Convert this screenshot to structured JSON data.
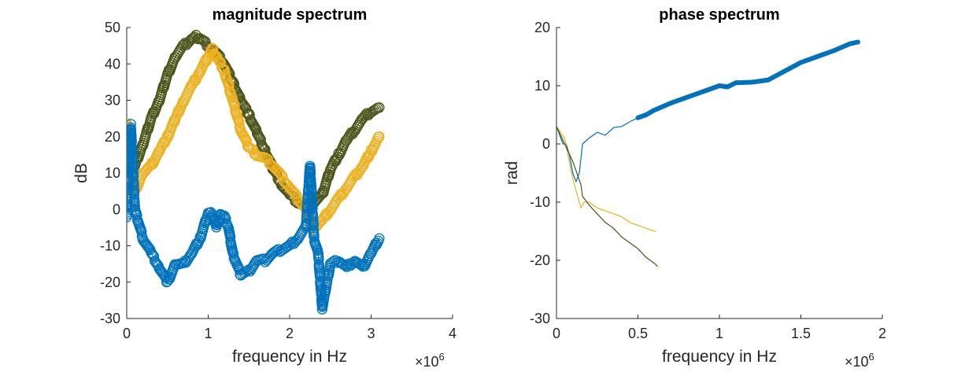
{
  "colors": {
    "blue": "#0072bd",
    "yellow": "#edb120",
    "olive": "#4d5419",
    "axis": "#262626"
  },
  "chart_data": [
    {
      "type": "scatter",
      "title": "magnitude spectrum",
      "xlabel": "frequency in Hz",
      "ylabel": "dB",
      "xlim": [
        0,
        4000000
      ],
      "ylim": [
        -30,
        50
      ],
      "x_exponent_label": "×10",
      "x_exponent_power": "6",
      "xticks": [
        0,
        1000000,
        2000000,
        3000000,
        4000000
      ],
      "xtick_labels": [
        "0",
        "1",
        "2",
        "3",
        "4"
      ],
      "yticks": [
        -30,
        -20,
        -10,
        0,
        10,
        20,
        30,
        40,
        50
      ],
      "ytick_labels": [
        "-30",
        "-20",
        "-10",
        "0",
        "10",
        "20",
        "30",
        "40",
        "50"
      ],
      "marker": "circle",
      "series": [
        {
          "color": "olive",
          "x": [
            0,
            100000,
            200000,
            300000,
            400000,
            500000,
            600000,
            700000,
            800000,
            850000,
            900000,
            1000000,
            1100000,
            1200000,
            1300000,
            1400000,
            1500000,
            1600000,
            1700000,
            1800000,
            1900000,
            2000000,
            2100000,
            2200000,
            2300000,
            2400000,
            2500000,
            2600000,
            2700000,
            2800000,
            2900000,
            3000000,
            3100000
          ],
          "values": [
            10,
            12,
            18,
            25,
            30,
            37,
            42,
            45,
            47,
            47.5,
            47,
            45,
            43,
            40,
            35,
            30,
            26,
            21,
            16,
            11,
            7,
            4,
            2,
            1,
            2,
            4,
            11,
            15,
            19,
            22,
            25,
            27,
            28
          ]
        },
        {
          "color": "yellow",
          "x": [
            0,
            100000,
            200000,
            300000,
            400000,
            500000,
            600000,
            700000,
            800000,
            900000,
            950000,
            1000000,
            1050000,
            1100000,
            1200000,
            1300000,
            1400000,
            1500000,
            1600000,
            1700000,
            1800000,
            1900000,
            2000000,
            2100000,
            2200000,
            2300000,
            2400000,
            2500000,
            2600000,
            2700000,
            2800000,
            2900000,
            3000000,
            3100000
          ],
          "values": [
            24,
            5,
            10,
            12,
            16,
            20,
            25,
            30,
            34,
            38,
            40,
            42,
            44,
            42,
            38,
            30,
            22,
            17,
            15,
            14,
            12,
            9,
            6,
            3,
            0,
            -5,
            -3,
            0,
            3,
            6,
            9,
            12,
            16,
            20
          ]
        },
        {
          "color": "blue",
          "x": [
            0,
            50000,
            100000,
            200000,
            300000,
            400000,
            500000,
            600000,
            700000,
            800000,
            900000,
            1000000,
            1050000,
            1100000,
            1150000,
            1200000,
            1250000,
            1300000,
            1400000,
            1500000,
            1600000,
            1700000,
            1800000,
            1900000,
            2000000,
            2100000,
            2200000,
            2250000,
            2300000,
            2350000,
            2400000,
            2500000,
            2600000,
            2700000,
            2800000,
            2900000,
            3000000,
            3100000
          ],
          "values": [
            -2,
            23,
            0,
            -8,
            -12,
            -16,
            -20,
            -15,
            -15,
            -12,
            -8,
            -1,
            -1,
            -5,
            -1,
            -2,
            -5,
            -12,
            -18,
            -17,
            -14,
            -14,
            -12,
            -11,
            -10,
            -8,
            -5,
            12,
            -8,
            -12,
            -27,
            -15,
            -14,
            -16,
            -14,
            -16,
            -12,
            -8
          ]
        }
      ]
    },
    {
      "type": "line",
      "title": "phase spectrum",
      "xlabel": "frequency in Hz",
      "ylabel": "rad",
      "xlim": [
        0,
        2000000
      ],
      "ylim": [
        -30,
        20
      ],
      "x_exponent_label": "×10",
      "x_exponent_power": "6",
      "xticks": [
        0,
        500000,
        1000000,
        1500000,
        2000000
      ],
      "xtick_labels": [
        "0",
        "0.5",
        "1",
        "1.5",
        "2"
      ],
      "yticks": [
        -30,
        -20,
        -10,
        0,
        10,
        20
      ],
      "ytick_labels": [
        "-30",
        "-20",
        "-10",
        "0",
        "10",
        "20"
      ],
      "series": [
        {
          "color": "blue",
          "x": [
            0,
            40000,
            60000,
            80000,
            100000,
            120000,
            140000,
            160000,
            200000,
            250000,
            300000,
            350000,
            400000,
            450000,
            500000
          ],
          "values": [
            3,
            0,
            0,
            -2,
            -5,
            -6.5,
            -5,
            0,
            1,
            2,
            1.5,
            2.8,
            3,
            3.8,
            4.5
          ],
          "width": 1.2
        },
        {
          "color": "blue",
          "x": [
            500000,
            550000,
            600000,
            700000,
            800000,
            900000,
            1000000,
            1050000,
            1100000,
            1200000,
            1300000,
            1400000,
            1500000,
            1600000,
            1700000,
            1800000,
            1850000
          ],
          "values": [
            4.5,
            5,
            5.8,
            7,
            8,
            9,
            10,
            9.8,
            10.5,
            10.6,
            11,
            12.5,
            14,
            15,
            16,
            17.2,
            17.5
          ],
          "width": 6
        },
        {
          "color": "yellow",
          "x": [
            0,
            50000,
            100000,
            130000,
            150000,
            170000,
            200000,
            250000,
            300000,
            350000,
            400000,
            450000,
            500000,
            550000,
            600000,
            610000
          ],
          "values": [
            3,
            1,
            -6,
            -9,
            -11,
            -10,
            -10,
            -11,
            -11.5,
            -12,
            -12.5,
            -13.5,
            -14,
            -14.5,
            -15,
            -15
          ]
        },
        {
          "color": "olive",
          "x": [
            0,
            50000,
            100000,
            150000,
            160000,
            200000,
            250000,
            300000,
            350000,
            400000,
            450000,
            500000,
            550000,
            600000,
            620000
          ],
          "values": [
            3,
            0,
            -3,
            -7,
            -9,
            -10.5,
            -12,
            -13.5,
            -14.5,
            -16,
            -17,
            -18,
            -19.5,
            -20.5,
            -21
          ]
        }
      ]
    }
  ]
}
